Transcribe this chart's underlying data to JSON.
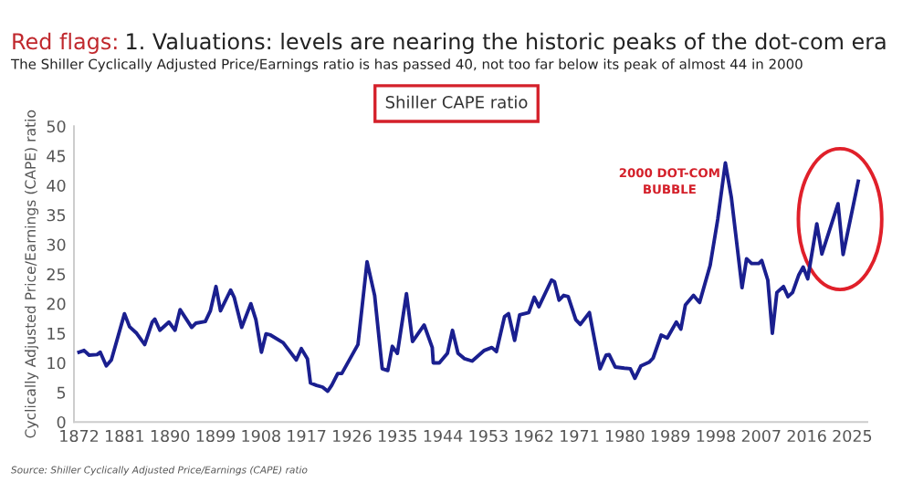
{
  "chart_data": {
    "type": "line",
    "title": "Red flags: 1. Valuations: levels are nearing the historic peaks of the dot-com era",
    "subtitle": "The Shiller Cyclically Adjusted Price/Earnings ratio is has passed 40, not too far below its peak of almost 44 in 2000",
    "ylabel": "Cyclically Adjusted Price/Earnings (CAPE) ratio",
    "annotations": [
      "Shiller CAPE ratio",
      {
        "text": "2000 DOT-COM\nBUBBLE",
        "x": 1999.9,
        "y": 43.8
      },
      "Source: Shiller Cyclically Adjusted Price/Earnings (CAPE) ratio"
    ],
    "series": [
      {
        "color": "#1a1f8f",
        "x": [
          1872,
          1873,
          1874,
          1875.6,
          1876.2,
          1877.4,
          1878.4,
          1881,
          1882,
          1883.4,
          1885,
          1886.5,
          1887,
          1888,
          1889.8,
          1891,
          1892,
          1894.3,
          1895.1,
          1897,
          1898,
          1899.1,
          1900,
          1902,
          1902.7,
          1904.2,
          1906,
          1907,
          1908.1,
          1909,
          1909.9,
          1912.4,
          1915,
          1916,
          1917.2,
          1917.8,
          1919,
          1920.2,
          1921.2,
          1922,
          1923.2,
          1924,
          1927.2,
          1929,
          1930.5,
          1932,
          1933.1,
          1934,
          1935,
          1936.8,
          1938,
          1940.3,
          1941.9,
          1942.1,
          1943.3,
          1944.9,
          1945.9,
          1947,
          1948.3,
          1949.8,
          1952.2,
          1953.7,
          1954.6,
          1956.2,
          1957,
          1958.2,
          1959.2,
          1961,
          1962.1,
          1963,
          1965.5,
          1966.1,
          1967,
          1967.9,
          1968.8,
          1970.3,
          1971.2,
          1973,
          1975.1,
          1976.3,
          1976.9,
          1978.1,
          1979.9,
          1981.1,
          1982,
          1983.2,
          1984.8,
          1985.6,
          1987.2,
          1988.4,
          1990.2,
          1991.1,
          1992,
          1993.6,
          1994.8,
          1996.9,
          1998.4,
          1999.9,
          2001.1,
          2003.2,
          2004.1,
          2005.1,
          2006.5,
          2007.1,
          2008.3,
          2009.2,
          2010.1,
          2011.4,
          2012.3,
          2013.2,
          2014.4,
          2015.3,
          2016.2,
          2018,
          2019,
          2022.2,
          2023.2,
          2026.2
        ],
        "values": [
          11.8,
          12.1,
          11.3,
          11.4,
          11.8,
          9.5,
          10.5,
          18.3,
          16.1,
          15,
          13.1,
          16.9,
          17.4,
          15.5,
          16.9,
          15.5,
          19,
          16,
          16.7,
          17,
          18.8,
          22.9,
          18.8,
          22.3,
          21.1,
          16,
          20,
          17.3,
          11.8,
          14.9,
          14.7,
          13.4,
          10.5,
          12.4,
          10.7,
          6.6,
          6.2,
          5.9,
          5.2,
          6.2,
          8.2,
          8.2,
          13.1,
          27.1,
          21.4,
          9,
          8.7,
          12.8,
          11.6,
          21.7,
          13.6,
          16.4,
          12.6,
          10,
          10,
          11.6,
          15.5,
          11.6,
          10.7,
          10.3,
          12.1,
          12.6,
          11.9,
          17.8,
          18.3,
          13.8,
          18.1,
          18.5,
          21.1,
          19.5,
          24,
          23.7,
          20.6,
          21.4,
          21.2,
          17.3,
          16.5,
          18.5,
          9,
          11.3,
          11.4,
          9.3,
          9.1,
          9,
          7.4,
          9.5,
          10.1,
          10.8,
          14.7,
          14.2,
          16.9,
          15.7,
          19.8,
          21.4,
          20.2,
          26.5,
          34.3,
          43.8,
          37.9,
          22.7,
          27.6,
          26.8,
          26.8,
          27.3,
          24,
          15,
          21.9,
          22.9,
          21.2,
          21.9,
          24.8,
          26.2,
          24.2,
          33.5,
          28.4,
          36.9,
          28.3,
          40.7
        ]
      }
    ],
    "xlim": [
      1871,
      2028
    ],
    "xticks": [
      1872,
      1881,
      1890,
      1899,
      1908,
      1917,
      1926,
      1935,
      1944,
      1953,
      1962,
      1971,
      1980,
      1989,
      1998,
      2007,
      2016,
      2025
    ],
    "ylim": [
      0,
      50
    ],
    "yticks": [
      0,
      5,
      10,
      15,
      20,
      25,
      30,
      35,
      40,
      45,
      50
    ],
    "grid": false,
    "legend": false,
    "marker": "none",
    "line_style": "solid"
  }
}
